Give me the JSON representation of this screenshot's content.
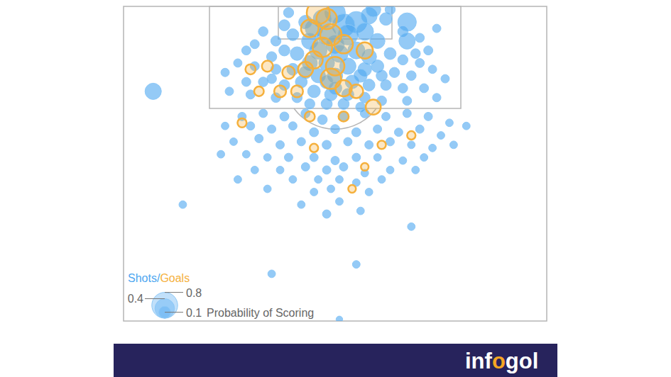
{
  "chart_data": {
    "type": "scatter",
    "xlim": [
      0,
      100
    ],
    "ylim": [
      0,
      100
    ],
    "tick_labels": false,
    "grid": false,
    "legend": "bottom-left",
    "legend_separator": "/",
    "size_legend": {
      "title": "Probability of Scoring",
      "values": [
        0.8,
        0.4,
        0.1
      ]
    },
    "branding": {
      "parts": [
        "inf",
        "o",
        "gol"
      ]
    },
    "series": [
      {
        "name": "Shots",
        "color": "#4da6f0",
        "marker": "circle",
        "x": [
          50,
          47,
          55,
          52,
          45,
          58,
          43,
          62,
          38,
          66,
          40,
          48,
          53,
          57,
          60,
          44,
          50,
          36,
          33,
          31,
          29,
          67,
          70,
          72,
          74,
          67,
          46,
          51,
          55,
          58,
          41,
          38,
          35,
          63,
          66,
          70,
          44,
          48,
          53,
          57,
          60,
          40,
          36,
          31,
          27,
          24,
          64,
          68,
          73,
          76,
          46,
          50,
          54,
          42,
          38,
          33,
          29,
          58,
          62,
          66,
          71,
          45,
          49,
          53,
          41,
          36,
          57,
          61,
          67,
          30,
          25,
          74,
          48,
          52,
          44,
          56,
          59,
          39,
          63,
          48,
          50,
          43,
          56,
          61,
          69,
          35,
          7,
          28,
          33,
          38,
          43,
          47,
          52,
          57,
          62,
          67,
          72,
          77,
          81,
          24,
          30,
          35,
          40,
          45,
          50,
          55,
          60,
          65,
          70,
          75,
          26,
          32,
          37,
          42,
          48,
          53,
          58,
          63,
          68,
          73,
          78,
          23,
          29,
          34,
          39,
          45,
          50,
          55,
          60,
          66,
          71,
          31,
          37,
          43,
          48,
          52,
          57,
          63,
          69,
          40,
          46,
          51,
          55,
          61,
          27,
          45,
          49,
          34,
          58,
          14,
          42,
          48,
          51,
          56,
          68,
          35,
          55,
          51
        ],
        "values": [
          2,
          4,
          5,
          6,
          7,
          3,
          5,
          4,
          6,
          8,
          9,
          9,
          9,
          8,
          11,
          11,
          12,
          11,
          8,
          12,
          14,
          11,
          10,
          14,
          7,
          5,
          14,
          15,
          14,
          16,
          15,
          14,
          16,
          15,
          17,
          18,
          18,
          18,
          19,
          20,
          19,
          20,
          20,
          19,
          18,
          21,
          21,
          22,
          20,
          23,
          22,
          22,
          24,
          24,
          25,
          24,
          24,
          25,
          25,
          26,
          26,
          27,
          28,
          28,
          29,
          29,
          29,
          30,
          30,
          28,
          27,
          29,
          31,
          31,
          31,
          32,
          1,
          2,
          1,
          24,
          26,
          21,
          22,
          22,
          15,
          23,
          27,
          35,
          34,
          35,
          34,
          36,
          35,
          34,
          35,
          34,
          35,
          37,
          38,
          38,
          38,
          39,
          38,
          40,
          39,
          40,
          39,
          40,
          39,
          41,
          43,
          42,
          44,
          43,
          44,
          43,
          44,
          43,
          44,
          45,
          44,
          47,
          47,
          48,
          48,
          48,
          49,
          48,
          48,
          49,
          48,
          52,
          52,
          51,
          52,
          51,
          53,
          52,
          52,
          55,
          55,
          55,
          56,
          55,
          55,
          59,
          58,
          58,
          59,
          63,
          63,
          66,
          62,
          65,
          70,
          85,
          82,
          99.5
        ],
        "size": [
          0.45,
          0.35,
          0.5,
          0.6,
          0.3,
          0.25,
          0.15,
          0.12,
          0.08,
          0.06,
          0.1,
          0.4,
          0.45,
          0.3,
          0.2,
          0.25,
          0.35,
          0.06,
          0.05,
          0.04,
          0.04,
          0.25,
          0.04,
          0.04,
          0.03,
          0.35,
          0.3,
          0.3,
          0.28,
          0.2,
          0.15,
          0.08,
          0.06,
          0.1,
          0.06,
          0.04,
          0.2,
          0.22,
          0.25,
          0.15,
          0.12,
          0.1,
          0.06,
          0.04,
          0.03,
          0.03,
          0.06,
          0.05,
          0.03,
          0.03,
          0.18,
          0.2,
          0.15,
          0.1,
          0.07,
          0.05,
          0.04,
          0.1,
          0.07,
          0.05,
          0.04,
          0.12,
          0.12,
          0.1,
          0.06,
          0.05,
          0.07,
          0.05,
          0.04,
          0.04,
          0.03,
          0.03,
          0.08,
          0.08,
          0.06,
          0.05,
          0.2,
          0.06,
          0.06,
          0.15,
          0.14,
          0.12,
          0.14,
          0.08,
          0.05,
          0.05,
          0.25,
          0.03,
          0.03,
          0.04,
          0.04,
          0.05,
          0.05,
          0.04,
          0.03,
          0.03,
          0.03,
          0.02,
          0.02,
          0.02,
          0.03,
          0.03,
          0.03,
          0.04,
          0.04,
          0.04,
          0.03,
          0.03,
          0.03,
          0.02,
          0.02,
          0.03,
          0.03,
          0.03,
          0.04,
          0.03,
          0.03,
          0.03,
          0.02,
          0.02,
          0.02,
          0.02,
          0.02,
          0.02,
          0.03,
          0.03,
          0.03,
          0.03,
          0.02,
          0.02,
          0.02,
          0.02,
          0.02,
          0.03,
          0.03,
          0.03,
          0.02,
          0.02,
          0.02,
          0.02,
          0.02,
          0.02,
          0.02,
          0.02,
          0.02,
          0.02,
          0.02,
          0.02,
          0.02,
          0.02,
          0.02,
          0.03,
          0.02,
          0.02,
          0.02,
          0.02,
          0.02,
          0.01
        ]
      },
      {
        "name": "Goals",
        "color": "#f5b03c",
        "marker": "ring",
        "x": [
          46,
          44,
          49,
          52,
          47,
          45,
          50,
          49,
          52,
          55,
          59,
          43,
          39,
          34,
          32,
          30,
          37,
          41,
          57,
          44,
          52,
          28,
          45,
          61,
          68,
          57,
          54,
          48
        ],
        "values": [
          2,
          7,
          9,
          12,
          13,
          17,
          19,
          23,
          26,
          27,
          32,
          20,
          21,
          19,
          27,
          20,
          27,
          27,
          14,
          35,
          35,
          37,
          45,
          44,
          41,
          51,
          58,
          4
        ],
        "size": [
          0.6,
          0.3,
          0.5,
          0.35,
          0.4,
          0.3,
          0.35,
          0.45,
          0.25,
          0.15,
          0.2,
          0.2,
          0.12,
          0.08,
          0.05,
          0.06,
          0.1,
          0.1,
          0.25,
          0.06,
          0.06,
          0.04,
          0.03,
          0.03,
          0.03,
          0.02,
          0.02,
          0.45
        ]
      }
    ]
  }
}
